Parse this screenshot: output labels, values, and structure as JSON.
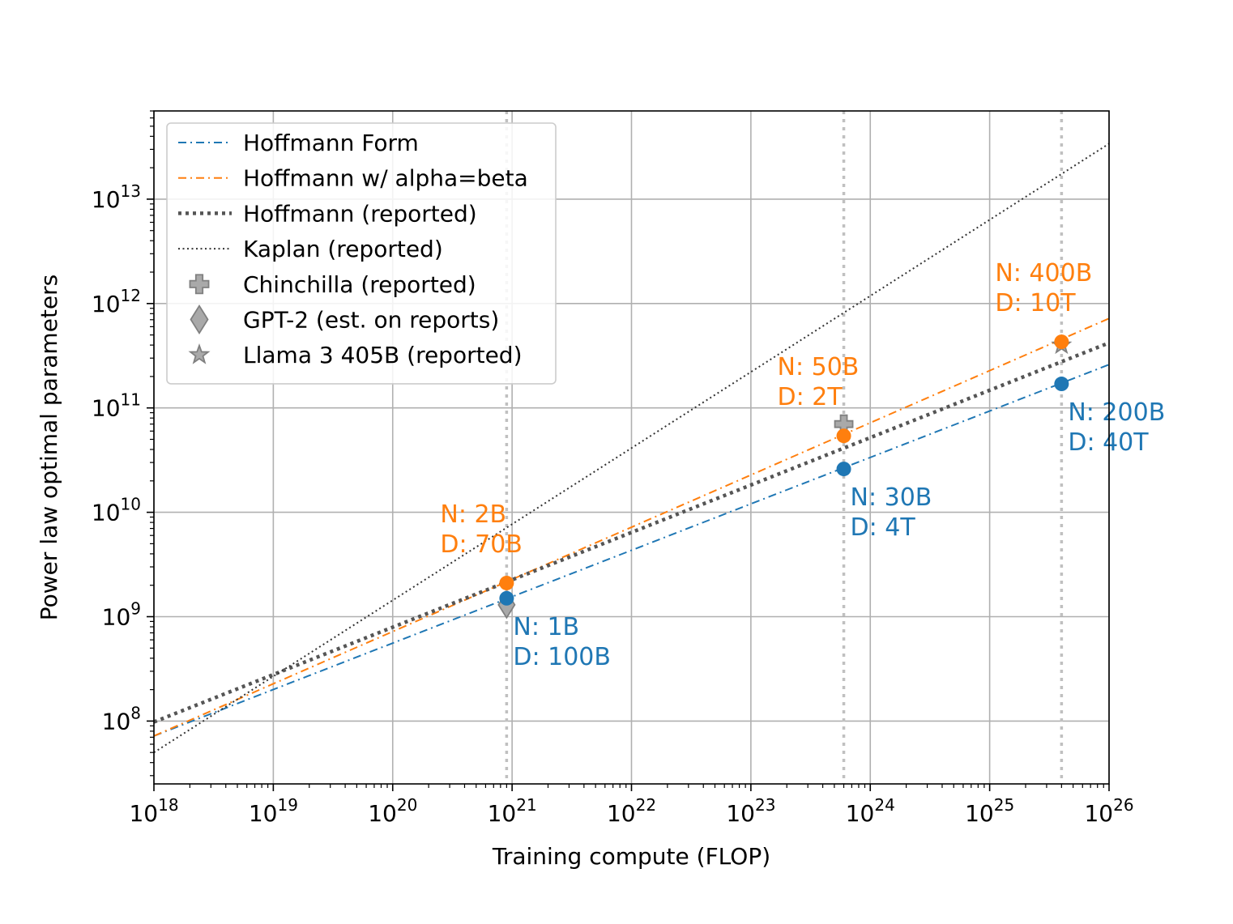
{
  "chart_data": {
    "type": "line",
    "xlabel": "Training compute (FLOP)",
    "ylabel": "Power law optimal parameters",
    "xscale": "log",
    "yscale": "log",
    "xlim": [
      1e+18,
      1e+26
    ],
    "ylim": [
      25000000.0,
      70000000000000.0
    ],
    "grid": true,
    "legend_position": "upper-left",
    "x_ticks": [
      {
        "exp": 18
      },
      {
        "exp": 19
      },
      {
        "exp": 20
      },
      {
        "exp": 21
      },
      {
        "exp": 22
      },
      {
        "exp": 23
      },
      {
        "exp": 24
      },
      {
        "exp": 25
      },
      {
        "exp": 26
      }
    ],
    "y_ticks": [
      {
        "exp": 8
      },
      {
        "exp": 9
      },
      {
        "exp": 10
      },
      {
        "exp": 11
      },
      {
        "exp": 12
      },
      {
        "exp": 13
      }
    ],
    "tick_base": "10",
    "vlines": [
      9e+20,
      6e+23,
      4e+25
    ],
    "series": [
      {
        "name": "Hoffmann Form",
        "color": "#1f77b4",
        "style": "dashdot",
        "x": [
          1e+18,
          1e+26
        ],
        "y": [
          72000000.0,
          260000000000.0
        ]
      },
      {
        "name": "Hoffmann w/ alpha=beta",
        "color": "#ff7f0e",
        "style": "dashdot",
        "x": [
          1e+18,
          1e+26
        ],
        "y": [
          72000000.0,
          720000000000.0
        ]
      },
      {
        "name": "Hoffmann (reported)",
        "color": "#555555",
        "style": "dotted-thick",
        "x": [
          1e+18,
          1e+26
        ],
        "y": [
          98000000.0,
          420000000000.0
        ]
      },
      {
        "name": "Kaplan (reported)",
        "color": "#333333",
        "style": "dotted-thin",
        "x": [
          1e+18,
          1e+26
        ],
        "y": [
          50000000.0,
          34000000000000.0
        ]
      }
    ],
    "reference_points": [
      {
        "name": "Chinchilla (reported)",
        "marker": "plus",
        "x": 6e+23,
        "y": 70000000000.0
      },
      {
        "name": "GPT-2 (est. on reports)",
        "marker": "diamond",
        "x": 9e+20,
        "y": 1300000000.0
      },
      {
        "name": "Llama 3 405B (reported)",
        "marker": "star",
        "x": 4e+25,
        "y": 400000000000.0
      }
    ],
    "points": [
      {
        "series": "Hoffmann Form",
        "color": "#1f77b4",
        "x": 9e+20,
        "y": 1500000000.0,
        "label1": "N: 1B",
        "label2": "D: 100B",
        "placement": "below-right"
      },
      {
        "series": "Hoffmann Form",
        "color": "#1f77b4",
        "x": 6e+23,
        "y": 26000000000.0,
        "label1": "N: 30B",
        "label2": "D: 4T",
        "placement": "below-right"
      },
      {
        "series": "Hoffmann Form",
        "color": "#1f77b4",
        "x": 4e+25,
        "y": 170000000000.0,
        "label1": "N: 200B",
        "label2": "D: 40T",
        "placement": "below-right"
      },
      {
        "series": "Hoffmann w/ alpha=beta",
        "color": "#ff7f0e",
        "x": 9e+20,
        "y": 2100000000.0,
        "label1": "N: 2B",
        "label2": "D: 70B",
        "placement": "above-left"
      },
      {
        "series": "Hoffmann w/ alpha=beta",
        "color": "#ff7f0e",
        "x": 6e+23,
        "y": 54000000000.0,
        "label1": "N: 50B",
        "label2": "D: 2T",
        "placement": "above-left"
      },
      {
        "series": "Hoffmann w/ alpha=beta",
        "color": "#ff7f0e",
        "x": 4e+25,
        "y": 430000000000.0,
        "label1": "N: 400B",
        "label2": "D: 10T",
        "placement": "above-left"
      }
    ]
  }
}
